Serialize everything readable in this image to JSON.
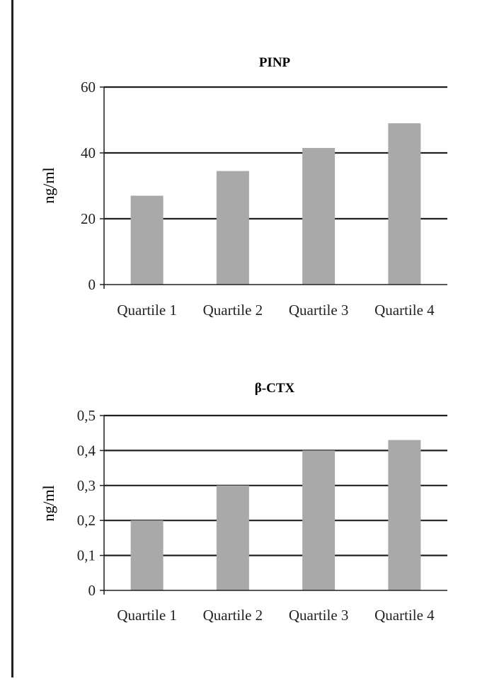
{
  "colors": {
    "bar": "#a9a9aa",
    "frame": "#231f20",
    "background": "#ffffff"
  },
  "chart_data": [
    {
      "type": "bar",
      "title": "PINP",
      "ylabel": "ng/ml",
      "xlabel": "",
      "categories": [
        "Quartile 1",
        "Quartile 2",
        "Quartile 3",
        "Quartile 4"
      ],
      "values": [
        27,
        34.5,
        41.5,
        49
      ],
      "ylim": [
        0,
        60
      ],
      "yticks": [
        0,
        20,
        40,
        60
      ],
      "ytick_labels": [
        "0",
        "20",
        "40",
        "60"
      ],
      "grid": true,
      "legend": "none"
    },
    {
      "type": "bar",
      "title": "β-CTX",
      "ylabel": "ng/ml",
      "xlabel": "",
      "categories": [
        "Quartile 1",
        "Quartile 2",
        "Quartile 3",
        "Quartile 4"
      ],
      "values": [
        0.2,
        0.3,
        0.4,
        0.43
      ],
      "ylim": [
        0,
        0.5
      ],
      "yticks": [
        0,
        0.1,
        0.2,
        0.3,
        0.4,
        0.5
      ],
      "ytick_labels": [
        "0",
        "0,1",
        "0,2",
        "0,3",
        "0,4",
        "0,5"
      ],
      "grid": true,
      "legend": "none"
    }
  ]
}
